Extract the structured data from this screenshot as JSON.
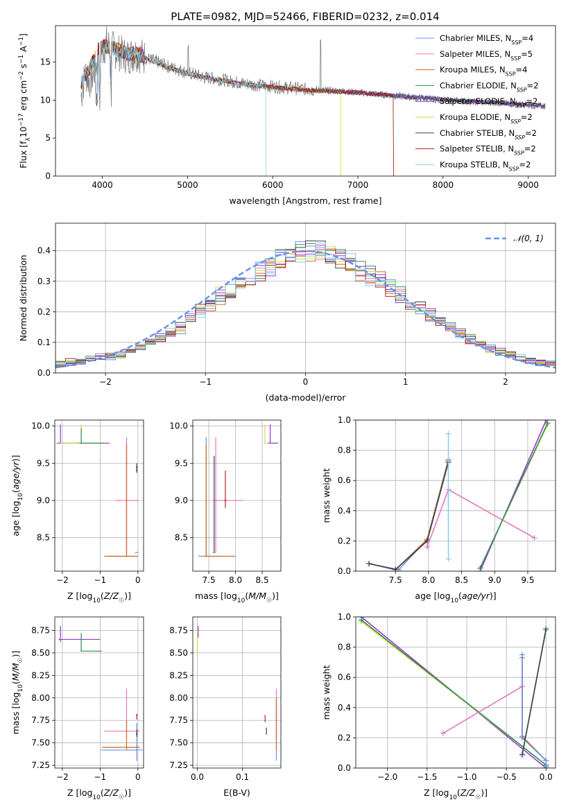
{
  "figure_title": "PLATE=0982, MJD=52466, FIBERID=0232, z=0.014",
  "models": [
    {
      "name": "Chabrier MILES, N_SSP=4",
      "label": "Chabrier MILES, N",
      "sub": "SSP",
      "suffix": "=4",
      "sub_italic": false,
      "color": "#6495ed"
    },
    {
      "name": "Salpeter MILES, N_SSP=5",
      "label": "Salpeter MILES, N",
      "sub": "SSP",
      "suffix": "=5",
      "sub_italic": false,
      "color": "#e377c2"
    },
    {
      "name": "Kroupa MILES, N_SSP=4",
      "label": "Kroupa MILES, N",
      "sub": "SSP",
      "suffix": "=4",
      "sub_italic": false,
      "color": "#d2691e"
    },
    {
      "name": "Chabrier ELODIE, N_SSP=2",
      "label": "Chabrier ELODIE, N",
      "sub": "SSP",
      "suffix": "=2",
      "sub_italic": true,
      "color": "#2e8b57"
    },
    {
      "name": "Salpeter ELODIE, N_SSP=2",
      "label": "Salpeter ELODIE, N",
      "sub": "SSP",
      "suffix": "=2",
      "sub_italic": true,
      "color": "#9932cc"
    },
    {
      "name": "Kroupa ELODIE, N_SSP=2",
      "label": "Kroupa ELODIE, N",
      "sub": "SSP",
      "suffix": "=2",
      "sub_italic": true,
      "color": "#c6e23c"
    },
    {
      "name": "Chabrier STELIB, N_SSP=2",
      "label": "Chabrier STELIB, N",
      "sub": "SSP",
      "suffix": "=2",
      "sub_italic": true,
      "color": "#404040"
    },
    {
      "name": "Salpeter STELIB, N_SSP=2",
      "label": "Salpeter STELIB, N",
      "sub": "SSP",
      "suffix": "=2",
      "sub_italic": true,
      "color": "#b22222"
    },
    {
      "name": "Kroupa STELIB, N_SSP=2",
      "label": "Kroupa STELIB, N",
      "sub": "SSP",
      "suffix": "=2",
      "sub_italic": false,
      "color": "#87ceeb"
    }
  ],
  "chart_data": [
    {
      "id": "spectrum",
      "type": "line",
      "xlabel": "wavelength [Angstrom, rest frame]",
      "ylabel": "Flux [f_λ10^-17 erg cm^-2 s^-1 A^-1]",
      "xlim": [
        3450,
        9320
      ],
      "ylim": [
        0,
        19.8
      ],
      "xticks": [
        4000,
        5000,
        6000,
        7000,
        8000,
        9000
      ],
      "yticks": [
        0,
        5,
        10,
        15
      ],
      "grid": false,
      "legend": "upper right",
      "data_series": {
        "name": "data",
        "color": "#808080",
        "x": [
          3750,
          3800,
          3850,
          3900,
          3950,
          4000,
          4050,
          4100,
          4150,
          4200,
          4300,
          4400,
          4500,
          4600,
          4700,
          4800,
          4900,
          5000,
          5200,
          5400,
          5600,
          5800,
          6000,
          6200,
          6400,
          6600,
          6800,
          7000,
          7200,
          7400,
          7600,
          7800,
          8000,
          8200,
          8400,
          8600,
          8800,
          9000,
          9200
        ],
        "y": [
          10.5,
          13.5,
          12.5,
          13.5,
          15.5,
          16.5,
          17.5,
          17,
          16.5,
          16.2,
          15.8,
          16.2,
          15.6,
          15.2,
          14.8,
          14.3,
          14.0,
          13.6,
          13.0,
          12.7,
          12.3,
          12.0,
          11.8,
          11.6,
          11.4,
          11.3,
          11.2,
          11.0,
          10.8,
          10.6,
          10.4,
          10.2,
          10.0,
          9.9,
          9.7,
          9.7,
          9.5,
          9.3,
          9.2
        ]
      },
      "model_series": {
        "x": [
          3750,
          3800,
          3850,
          3900,
          3950,
          4000,
          4100,
          4200,
          4300,
          4400,
          4500,
          4600,
          4800,
          5000,
          5200,
          5400,
          5600,
          5800,
          6000,
          6200,
          6400,
          6600,
          6800,
          7000,
          7200,
          7400,
          7600,
          7800,
          8000,
          8200,
          8400,
          8600,
          8800,
          9000,
          9200
        ],
        "y": [
          12.0,
          13.2,
          14.2,
          15.2,
          16.6,
          17.2,
          16.8,
          16.6,
          16.0,
          16.2,
          15.6,
          15.1,
          14.2,
          13.5,
          13.0,
          12.6,
          12.2,
          11.9,
          11.7,
          11.5,
          11.3,
          11.2,
          11.1,
          11.0,
          10.8,
          10.6,
          10.4,
          10.3,
          10.1,
          9.9,
          9.8,
          9.7,
          9.5,
          9.4,
          9.2
        ]
      }
    },
    {
      "id": "residuals",
      "type": "step",
      "xlabel": "(data-model)/error",
      "ylabel": "Normed distribution",
      "xlim": [
        -2.5,
        2.5
      ],
      "ylim": [
        0,
        0.49
      ],
      "xticks": [
        -2,
        -1,
        0,
        1,
        2
      ],
      "yticks": [
        0.0,
        0.1,
        0.2,
        0.3,
        0.4
      ],
      "grid": true,
      "legend": "upper right",
      "gaussian_label": "𝒩(0, 1)",
      "gaussian_color": "#6495ed",
      "bin_edges_range": [
        -2.5,
        2.5
      ],
      "n_bins": 50,
      "hist_base": [
        0.03,
        0.035,
        0.04,
        0.045,
        0.05,
        0.052,
        0.058,
        0.07,
        0.085,
        0.1,
        0.115,
        0.13,
        0.15,
        0.175,
        0.2,
        0.225,
        0.25,
        0.27,
        0.29,
        0.31,
        0.33,
        0.35,
        0.37,
        0.39,
        0.4,
        0.405,
        0.4,
        0.39,
        0.38,
        0.36,
        0.34,
        0.32,
        0.3,
        0.28,
        0.255,
        0.23,
        0.21,
        0.19,
        0.17,
        0.15,
        0.13,
        0.11,
        0.095,
        0.08,
        0.07,
        0.06,
        0.05,
        0.042,
        0.035,
        0.03
      ]
    },
    {
      "id": "age_vs_Z",
      "type": "errorbar",
      "xlabel": "Z [log10(Z/Z☉)]",
      "ylabel": "age [log10(age/yr)]",
      "xlim": [
        -2.2,
        0.15
      ],
      "ylim": [
        8.05,
        10.08
      ],
      "xticks": [
        -2,
        -1,
        0
      ],
      "yticks": [
        8.5,
        9.0,
        9.5,
        10.0
      ],
      "grid": true,
      "points": [
        {
          "m": 0,
          "x": -0.03,
          "y": 8.3,
          "xlo": 0.05,
          "xhi": 0.05,
          "ylo": 0,
          "yhi": 0
        },
        {
          "m": 0,
          "x": -0.3,
          "y": 8.25,
          "xlo": 0.6,
          "xhi": 0.3,
          "ylo": 0,
          "yhi": 1.6
        },
        {
          "m": 1,
          "x": -0.3,
          "y": 9.0,
          "xlo": 0.3,
          "xhi": 0.3,
          "ylo": 0.7,
          "yhi": 0.8
        },
        {
          "m": 2,
          "x": -0.3,
          "y": 8.25,
          "xlo": 0.55,
          "xhi": 0.3,
          "ylo": 0,
          "yhi": 1.5
        },
        {
          "m": 7,
          "x": -0.03,
          "y": 9.4,
          "xlo": 0.02,
          "xhi": 0.02,
          "ylo": 0.03,
          "yhi": 0.05
        },
        {
          "m": 6,
          "x": -0.03,
          "y": 9.45,
          "xlo": 0.02,
          "xhi": 0.02,
          "ylo": 0.05,
          "yhi": 0.05
        },
        {
          "m": 4,
          "x": -2.05,
          "y": 9.77,
          "xlo": 0.1,
          "xhi": 1.3,
          "ylo": 0,
          "yhi": 0.25
        },
        {
          "m": 5,
          "x": -1.5,
          "y": 9.77,
          "xlo": 0.55,
          "xhi": 0.55,
          "ylo": 0,
          "yhi": 0.25
        },
        {
          "m": 3,
          "x": -1.5,
          "y": 9.77,
          "xlo": 0.05,
          "xhi": 0.6,
          "ylo": 0,
          "yhi": 0.2
        }
      ]
    },
    {
      "id": "age_vs_mass",
      "type": "errorbar",
      "xlabel": "mass [log10(M/M☉)]",
      "ylabel": "",
      "xlim": [
        7.2,
        8.85
      ],
      "ylim": [
        8.05,
        10.08
      ],
      "xticks": [
        7.5,
        8.0,
        8.5
      ],
      "yticks": [
        8.5,
        9.0,
        9.5,
        10.0
      ],
      "grid": true,
      "points": [
        {
          "m": 0,
          "x": 7.45,
          "y": 8.25,
          "xlo": 0.15,
          "xhi": 0.2,
          "ylo": 0,
          "yhi": 1.6
        },
        {
          "m": 1,
          "x": 7.63,
          "y": 9.0,
          "xlo": 0.05,
          "xhi": 0.5,
          "ylo": 0.7,
          "yhi": 0.85
        },
        {
          "m": 2,
          "x": 7.45,
          "y": 8.25,
          "xlo": 0.05,
          "xhi": 0.55,
          "ylo": 0,
          "yhi": 1.5
        },
        {
          "m": 7,
          "x": 7.81,
          "y": 9.0,
          "xlo": 0.02,
          "xhi": 0.02,
          "ylo": 0.1,
          "yhi": 0.4
        },
        {
          "m": 6,
          "x": 7.6,
          "y": 8.3,
          "xlo": 0.02,
          "xhi": 0.02,
          "ylo": 0,
          "yhi": 1.3
        },
        {
          "m": 8,
          "x": 7.62,
          "y": 8.3,
          "xlo": 0.02,
          "xhi": 0.02,
          "ylo": 0,
          "yhi": 0
        },
        {
          "m": 4,
          "x": 8.65,
          "y": 9.77,
          "xlo": 0.05,
          "xhi": 0.15,
          "ylo": 0,
          "yhi": 0.25
        },
        {
          "m": 5,
          "x": 8.55,
          "y": 9.77,
          "xlo": 0.02,
          "xhi": 0.02,
          "ylo": 0,
          "yhi": 0.25
        }
      ]
    },
    {
      "id": "massweight_vs_age",
      "type": "line",
      "xlabel": "age [log10(age/yr)]",
      "ylabel": "mass weight",
      "xlim": [
        6.9,
        9.92
      ],
      "ylim": [
        0,
        1
      ],
      "xticks": [
        7.5,
        8.0,
        8.5,
        9.0,
        9.5
      ],
      "yticks": [
        0.0,
        0.2,
        0.4,
        0.6,
        0.8,
        1.0
      ],
      "grid": true,
      "lines": [
        {
          "m": 0,
          "x": [
            7.1,
            7.55,
            7.98,
            8.3
          ],
          "y": [
            0.05,
            0.01,
            0.21,
            0.74
          ]
        },
        {
          "m": 2,
          "x": [
            7.1,
            7.5,
            7.98,
            8.3
          ],
          "y": [
            0.05,
            0.01,
            0.21,
            0.73
          ]
        },
        {
          "m": 6,
          "x": [
            7.1,
            7.5,
            7.98,
            8.3
          ],
          "y": [
            0.05,
            0.01,
            0.2,
            0.72
          ]
        },
        {
          "m": 1,
          "x": [
            7.98,
            8.3,
            9.6
          ],
          "y": [
            0.16,
            0.54,
            0.22
          ]
        },
        {
          "m": 4,
          "x": [
            8.78,
            9.78
          ],
          "y": [
            0.0,
            1.0
          ]
        },
        {
          "m": 5,
          "x": [
            8.78,
            9.8
          ],
          "y": [
            0.02,
            0.97
          ]
        },
        {
          "m": 3,
          "x": [
            8.78,
            9.8
          ],
          "y": [
            0.02,
            0.98
          ]
        },
        {
          "m": 8,
          "x": [
            8.3,
            8.3
          ],
          "y": [
            0.08,
            0.91
          ]
        }
      ]
    },
    {
      "id": "mass_vs_Z",
      "type": "errorbar",
      "xlabel": "Z [log10(Z/Z☉)]",
      "ylabel": "mass [log10(M/M☉)]",
      "xlim": [
        -2.2,
        0.15
      ],
      "ylim": [
        7.22,
        8.9
      ],
      "xticks": [
        -2,
        -1,
        0
      ],
      "yticks": [
        7.25,
        7.5,
        7.75,
        8.0,
        8.25,
        8.5,
        8.75
      ],
      "grid": true,
      "points": [
        {
          "m": 0,
          "x": -0.03,
          "y": 7.42,
          "xlo": 0.95,
          "xhi": 0.15,
          "ylo": 0.12,
          "yhi": 0.3
        },
        {
          "m": 1,
          "x": -0.3,
          "y": 7.63,
          "xlo": 0.6,
          "xhi": 0.35,
          "ylo": 0.1,
          "yhi": 0.47
        },
        {
          "m": 2,
          "x": -0.3,
          "y": 7.45,
          "xlo": 0.65,
          "xhi": 0.35,
          "ylo": 0.03,
          "yhi": 0.3
        },
        {
          "m": 7,
          "x": -0.03,
          "y": 7.81,
          "xlo": 0.02,
          "xhi": 0.02,
          "ylo": 0.05,
          "yhi": 0.01
        },
        {
          "m": 6,
          "x": -0.03,
          "y": 7.6,
          "xlo": 0.02,
          "xhi": 0.02,
          "ylo": 0.03,
          "yhi": 0.05
        },
        {
          "m": 4,
          "x": -2.05,
          "y": 8.65,
          "xlo": 0.05,
          "xhi": 1.05,
          "ylo": 0.03,
          "yhi": 0.15
        },
        {
          "m": 5,
          "x": -1.5,
          "y": 8.52,
          "xlo": 0.02,
          "xhi": 0.02,
          "ylo": 0,
          "yhi": 0.2
        },
        {
          "m": 3,
          "x": -1.5,
          "y": 8.52,
          "xlo": 0.02,
          "xhi": 0.55,
          "ylo": 0,
          "yhi": 0.2
        }
      ]
    },
    {
      "id": "mass_vs_ebv",
      "type": "errorbar",
      "xlabel": "E(B-V)",
      "ylabel": "",
      "xlim": [
        -0.01,
        0.185
      ],
      "ylim": [
        7.22,
        8.9
      ],
      "xticks": [
        0.0,
        0.1
      ],
      "yticks": [
        7.25,
        7.5,
        7.75,
        8.0,
        8.25,
        8.5,
        8.75
      ],
      "grid": true,
      "points": [
        {
          "m": 0,
          "x": 0.175,
          "y": 7.42,
          "xlo": 0,
          "xhi": 0,
          "ylo": 0.12,
          "yhi": 0.55
        },
        {
          "m": 1,
          "x": 0.175,
          "y": 7.63,
          "xlo": 0,
          "xhi": 0,
          "ylo": 0.1,
          "yhi": 0.47
        },
        {
          "m": 2,
          "x": 0.175,
          "y": 7.45,
          "xlo": 0,
          "xhi": 0,
          "ylo": 0.03,
          "yhi": 0.55
        },
        {
          "m": 7,
          "x": 0.15,
          "y": 7.78,
          "xlo": 0,
          "xhi": 0,
          "ylo": 0.05,
          "yhi": 0.03
        },
        {
          "m": 6,
          "x": 0.153,
          "y": 7.62,
          "xlo": 0,
          "xhi": 0,
          "ylo": 0.03,
          "yhi": 0.05
        },
        {
          "m": 8,
          "x": 0.148,
          "y": 7.68,
          "xlo": 0,
          "xhi": 0,
          "ylo": 0,
          "yhi": 0
        },
        {
          "m": 4,
          "x": 0.002,
          "y": 8.72,
          "xlo": 0,
          "xhi": 0,
          "ylo": 0.05,
          "yhi": 0.08
        },
        {
          "m": 5,
          "x": 0.0,
          "y": 8.6,
          "xlo": 0,
          "xhi": 0,
          "ylo": 0.1,
          "yhi": 0.15
        }
      ]
    },
    {
      "id": "massweight_vs_Z",
      "type": "line",
      "xlabel": "Z [log10(Z/Z☉)]",
      "ylabel": "mass weight",
      "xlim": [
        -2.4,
        0.12
      ],
      "ylim": [
        0,
        1
      ],
      "xticks": [
        -2.0,
        -1.5,
        -1.0,
        -0.5,
        0.0
      ],
      "yticks": [
        0.0,
        0.2,
        0.4,
        0.6,
        0.8,
        1.0
      ],
      "grid": true,
      "lines": [
        {
          "m": 4,
          "x": [
            -2.33,
            0.0
          ],
          "y": [
            1.0,
            0.0
          ]
        },
        {
          "m": 5,
          "x": [
            -2.33,
            0.0
          ],
          "y": [
            0.97,
            0.02
          ]
        },
        {
          "m": 3,
          "x": [
            -2.33,
            0.0
          ],
          "y": [
            0.98,
            0.02
          ]
        },
        {
          "m": 1,
          "x": [
            -1.3,
            -0.3,
            -0.3
          ],
          "y": [
            0.23,
            0.54,
            0.2
          ]
        },
        {
          "m": 2,
          "x": [
            -0.3,
            -0.3,
            0.0,
            0.0
          ],
          "y": [
            0.73,
            0.21,
            0.05,
            0.01
          ]
        },
        {
          "m": 0,
          "x": [
            -0.3,
            -0.3,
            0.0,
            0.0
          ],
          "y": [
            0.75,
            0.2,
            0.05,
            0.01
          ]
        },
        {
          "m": 8,
          "x": [
            -0.3,
            0.0
          ],
          "y": [
            0.08,
            0.91
          ]
        },
        {
          "m": 6,
          "x": [
            -0.3,
            0.0
          ],
          "y": [
            0.09,
            0.92
          ]
        }
      ]
    }
  ]
}
